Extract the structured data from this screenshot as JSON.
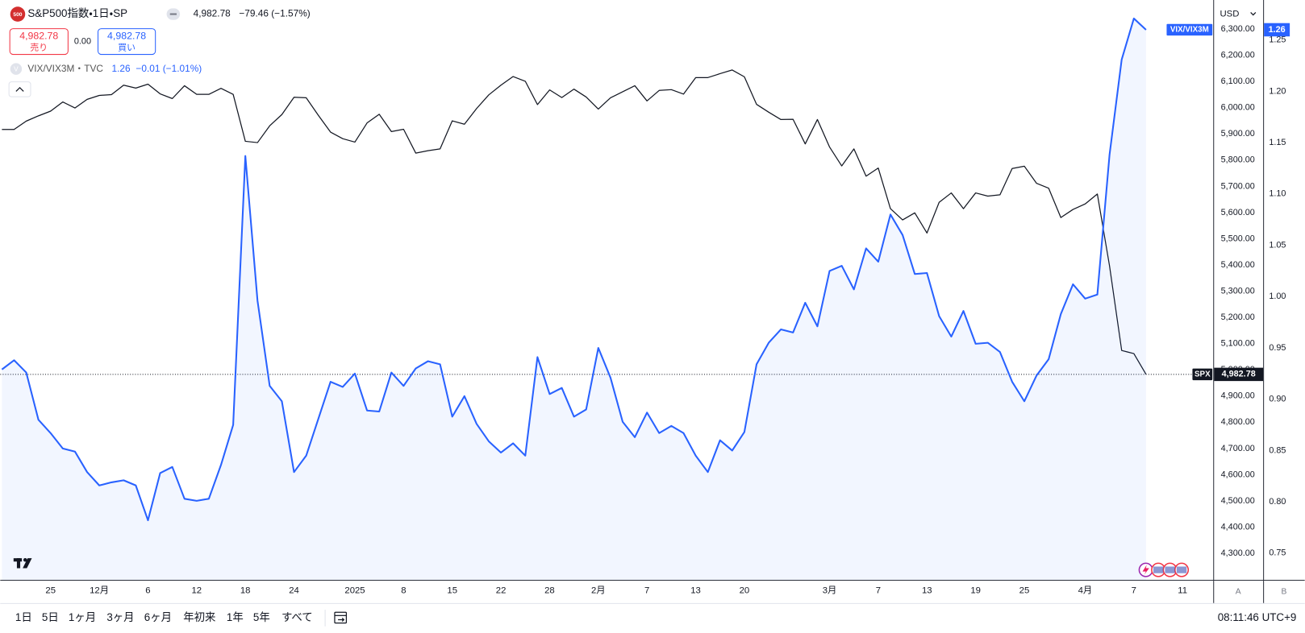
{
  "header": {
    "symbol_icon": "500",
    "title": "S&P500指数・1日・SP",
    "price": "4,982.78",
    "change": "−79.46 (−1.57%)",
    "sell_price": "4,982.78",
    "sell_label": "売り",
    "spread": "0.00",
    "buy_price": "4,982.78",
    "buy_label": "買い",
    "overlay_icon": "V",
    "overlay_title": "VIX/VIX3M・TVC",
    "overlay_price": "1.26",
    "overlay_change": "−0.01 (−1.01%)",
    "currency": "USD"
  },
  "toolbar": {
    "ranges": [
      "1日",
      "5日",
      "1ヶ月",
      "3ヶ月",
      "6ヶ月",
      "年初来",
      "1年",
      "5年",
      "すべて"
    ],
    "clock": "08:11:46 UTC+9",
    "scale_buttons": [
      "A",
      "B"
    ]
  },
  "chart_data": {
    "type": "line",
    "grid": false,
    "categories": [
      null,
      null,
      null,
      null,
      "25",
      null,
      null,
      null,
      "12月",
      null,
      null,
      null,
      "6",
      null,
      null,
      null,
      "12",
      null,
      null,
      null,
      "18",
      null,
      null,
      null,
      "24",
      null,
      null,
      null,
      null,
      "2025",
      null,
      null,
      null,
      "8",
      null,
      null,
      null,
      "15",
      null,
      null,
      null,
      "22",
      null,
      null,
      null,
      "28",
      null,
      null,
      null,
      "2月",
      null,
      null,
      null,
      "7",
      null,
      null,
      null,
      "13",
      null,
      null,
      null,
      "20",
      null,
      null,
      null,
      null,
      null,
      null,
      "3月",
      null,
      null,
      null,
      "7",
      null,
      null,
      null,
      "13",
      null,
      null,
      null,
      "19",
      null,
      null,
      null,
      "25",
      null,
      null,
      null,
      null,
      "4月",
      null,
      null,
      null,
      "7",
      null,
      null,
      null,
      "11"
    ],
    "ylim": [
      4199,
      6411
    ],
    "yticks": [
      {
        "value": 4300,
        "label": "4,300.00"
      },
      {
        "value": 4400,
        "label": "4,400.00"
      },
      {
        "value": 4500,
        "label": "4,500.00"
      },
      {
        "value": 4600,
        "label": "4,600.00"
      },
      {
        "value": 4700,
        "label": "4,700.00"
      },
      {
        "value": 4800,
        "label": "4,800.00"
      },
      {
        "value": 4900,
        "label": "4,900.00"
      },
      {
        "value": 5000,
        "label": "5,000.00"
      },
      {
        "value": 5100,
        "label": "5,100.00"
      },
      {
        "value": 5200,
        "label": "5,200.00"
      },
      {
        "value": 5300,
        "label": "5,300.00"
      },
      {
        "value": 5400,
        "label": "5,400.00"
      },
      {
        "value": 5500,
        "label": "5,500.00"
      },
      {
        "value": 5600,
        "label": "5,600.00"
      },
      {
        "value": 5700,
        "label": "5,700.00"
      },
      {
        "value": 5800,
        "label": "5,800.00"
      },
      {
        "value": 5900,
        "label": "5,900.00"
      },
      {
        "value": 6000,
        "label": "6,000.00"
      },
      {
        "value": 6100,
        "label": "6,100.00"
      },
      {
        "value": 6200,
        "label": "6,200.00"
      },
      {
        "value": 6300,
        "label": "6,300.00"
      }
    ],
    "y2lim": [
      0.724,
      1.289
    ],
    "y2ticks": [
      0.75,
      {
        "value": 0.8,
        "label": "0.80"
      },
      0.85,
      {
        "value": 0.9,
        "label": "0.90"
      },
      0.95,
      {
        "value": 1.0,
        "label": "1.00"
      },
      1.05,
      {
        "value": 1.1,
        "label": "1.10"
      },
      1.15,
      {
        "value": 1.2,
        "label": "1.20"
      },
      1.25
    ],
    "series": [
      {
        "name": "SPX",
        "color": "#131722",
        "last_label": "4,982.78",
        "values": [
          5917,
          5917,
          5949,
          5969,
          5987,
          6022,
          5999,
          6032,
          6047,
          6050,
          6086,
          6075,
          6090,
          6053,
          6035,
          6084,
          6051,
          6051,
          6074,
          6051,
          5872,
          5867,
          5931,
          5974,
          6040,
          6038,
          5971,
          5907,
          5882,
          5869,
          5942,
          5975,
          5909,
          5918,
          5827,
          5836,
          5843,
          5950,
          5937,
          5997,
          6049,
          6086,
          6119,
          6101,
          6012,
          6068,
          6039,
          6071,
          6041,
          5995,
          6038,
          6061,
          6084,
          6026,
          6066,
          6069,
          6052,
          6115,
          6115,
          6130,
          6144,
          6118,
          6013,
          5983,
          5955,
          5956,
          5862,
          5955,
          5850,
          5778,
          5843,
          5739,
          5770,
          5615,
          5572,
          5599,
          5522,
          5639,
          5675,
          5615,
          5675,
          5663,
          5668,
          5768,
          5777,
          5712,
          5693,
          5581,
          5612,
          5633,
          5671,
          5397,
          5074,
          5062,
          4982.78,
          null,
          null,
          null
        ]
      },
      {
        "name": "VIX/VIX3M",
        "color": "#2962ff",
        "axis": "y2",
        "area": true,
        "last_label": "1.26",
        "values": [
          0.929,
          0.938,
          0.926,
          0.88,
          0.867,
          0.852,
          0.849,
          0.829,
          0.816,
          0.819,
          0.821,
          0.816,
          0.782,
          0.828,
          0.834,
          0.803,
          0.801,
          0.803,
          0.836,
          0.875,
          1.137,
          0.996,
          0.913,
          0.898,
          0.829,
          0.845,
          0.881,
          0.917,
          0.912,
          0.925,
          0.889,
          0.888,
          0.926,
          0.913,
          0.93,
          0.937,
          0.934,
          0.883,
          0.903,
          0.876,
          0.859,
          0.848,
          0.857,
          0.845,
          0.941,
          0.905,
          0.911,
          0.883,
          0.89,
          0.95,
          0.921,
          0.878,
          0.863,
          0.887,
          0.867,
          0.874,
          0.867,
          0.845,
          0.829,
          0.86,
          0.85,
          0.868,
          0.934,
          0.955,
          0.968,
          0.965,
          0.994,
          0.971,
          1.025,
          1.03,
          1.007,
          1.047,
          1.034,
          1.08,
          1.06,
          1.022,
          1.023,
          0.981,
          0.961,
          0.986,
          0.954,
          0.955,
          0.946,
          0.917,
          0.898,
          0.923,
          0.939,
          0.983,
          1.012,
          0.998,
          1.002,
          1.138,
          1.231,
          1.271,
          1.26,
          null,
          null,
          null
        ]
      }
    ]
  }
}
